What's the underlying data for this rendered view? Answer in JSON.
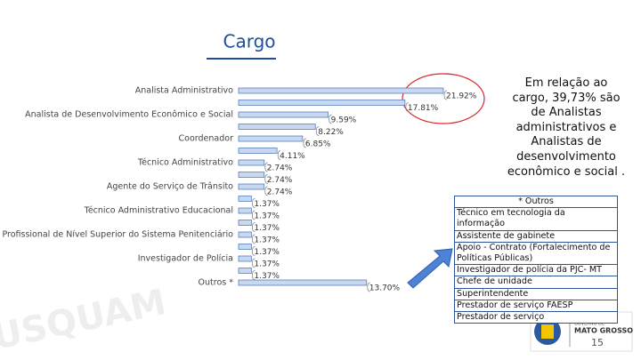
{
  "chart_data": {
    "type": "bar",
    "orientation": "horizontal",
    "categories": [
      "Analista Administrativo",
      null,
      "Analista de Desenvolvimento Econômico e Social",
      null,
      "Coordenador",
      null,
      "Técnico Administrativo",
      null,
      "Agente do Serviço de Trânsito",
      null,
      "Técnico Administrativo Educacional",
      null,
      "Profissional de Nível Superior do Sistema Penitenciário",
      null,
      "Investigador de Polícia",
      null,
      "Outros *"
    ],
    "values": [
      21.92,
      17.81,
      9.59,
      8.22,
      6.85,
      4.11,
      2.74,
      2.74,
      2.74,
      1.37,
      1.37,
      1.37,
      1.37,
      1.37,
      1.37,
      1.37,
      13.7
    ],
    "value_labels": [
      "21.92%",
      "17.81%",
      "9.59%",
      "8.22%",
      "6.85%",
      "4.11%",
      "2.74%",
      "2.74%",
      "2.74%",
      "1.37%",
      "1.37%",
      "1.37%",
      "1.37%",
      "1.37%",
      "1.37%",
      "1.37%",
      "13.70%"
    ],
    "color": "#c6d9f1"
  },
  "slide": {
    "title": "Cargo",
    "note": "Em relação ao cargo, 39,73% são de Analistas administrativos e Analistas de desenvolvimento econômico e social .",
    "outros_box": {
      "title": "* Outros",
      "items": [
        "Técnico em tecnologia da informação",
        "Assistente de gabinete",
        "Apoio - Contrato (Fortalecimento de Políticas Públicas)",
        "Investigador de polícia da PJC- MT",
        "Chefe de unidade",
        "Superintendente",
        "Prestador de serviço FAESP",
        "Prestador de serviço"
      ]
    },
    "watermark": "USQUAM",
    "logo": {
      "line1": "GOVERNO DE",
      "line2": "MATO GROSSO"
    },
    "page_number": "15"
  }
}
